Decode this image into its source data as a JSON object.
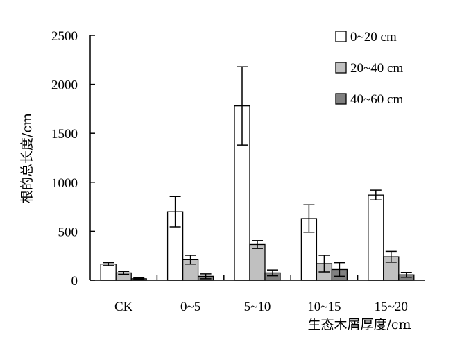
{
  "chart_data": {
    "type": "bar",
    "title": "",
    "xlabel": "生态木屑厚度/cm",
    "ylabel": "根的总长度/cm",
    "ylim": [
      0,
      2500
    ],
    "yticks": [
      "0",
      "500",
      "1000",
      "1500",
      "2000",
      "2500"
    ],
    "ytick_values": [
      0,
      500,
      1000,
      1500,
      2000,
      2500
    ],
    "categories": [
      "CK",
      "0~5",
      "5~10",
      "10~15",
      "15~20"
    ],
    "grid": false,
    "legend_position": "top-right",
    "series": [
      {
        "name": "0~20 cm",
        "color": "#ffffff",
        "values": [
          165,
          700,
          1780,
          630,
          870
        ],
        "errors": [
          15,
          155,
          400,
          140,
          50
        ]
      },
      {
        "name": "20~40 cm",
        "color": "#c0c0c0",
        "values": [
          75,
          210,
          365,
          170,
          240
        ],
        "errors": [
          15,
          45,
          40,
          85,
          55
        ]
      },
      {
        "name": "40~60 cm",
        "color": "#808080",
        "values": [
          15,
          40,
          75,
          110,
          55
        ],
        "errors": [
          8,
          25,
          30,
          70,
          25
        ]
      }
    ]
  }
}
